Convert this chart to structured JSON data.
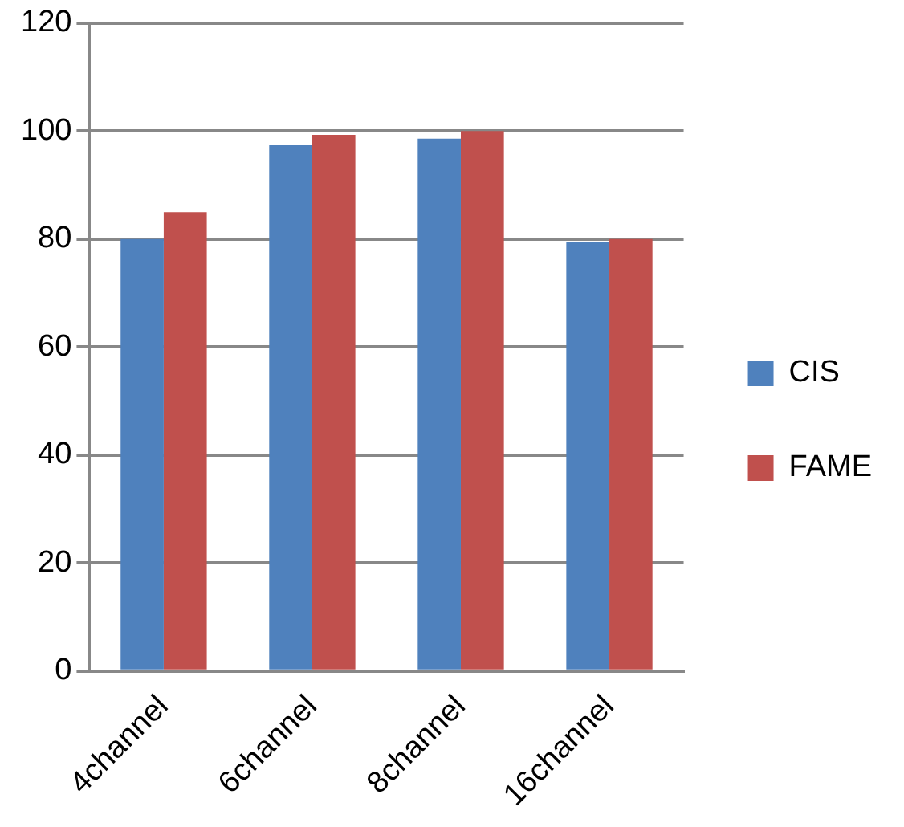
{
  "chart_data": {
    "type": "bar",
    "categories": [
      "4channel",
      "6channel",
      "8channel",
      "16channel"
    ],
    "series": [
      {
        "name": "CIS",
        "color": "#4f81bd",
        "values": [
          80,
          97.5,
          98.6,
          79.5
        ]
      },
      {
        "name": "FAME",
        "color": "#c0504d",
        "values": [
          85,
          99.3,
          100,
          80
        ]
      }
    ],
    "ylim": [
      0,
      120
    ],
    "yticks": [
      0,
      20,
      40,
      60,
      80,
      100,
      120
    ],
    "grid": "y",
    "legend": "right"
  }
}
